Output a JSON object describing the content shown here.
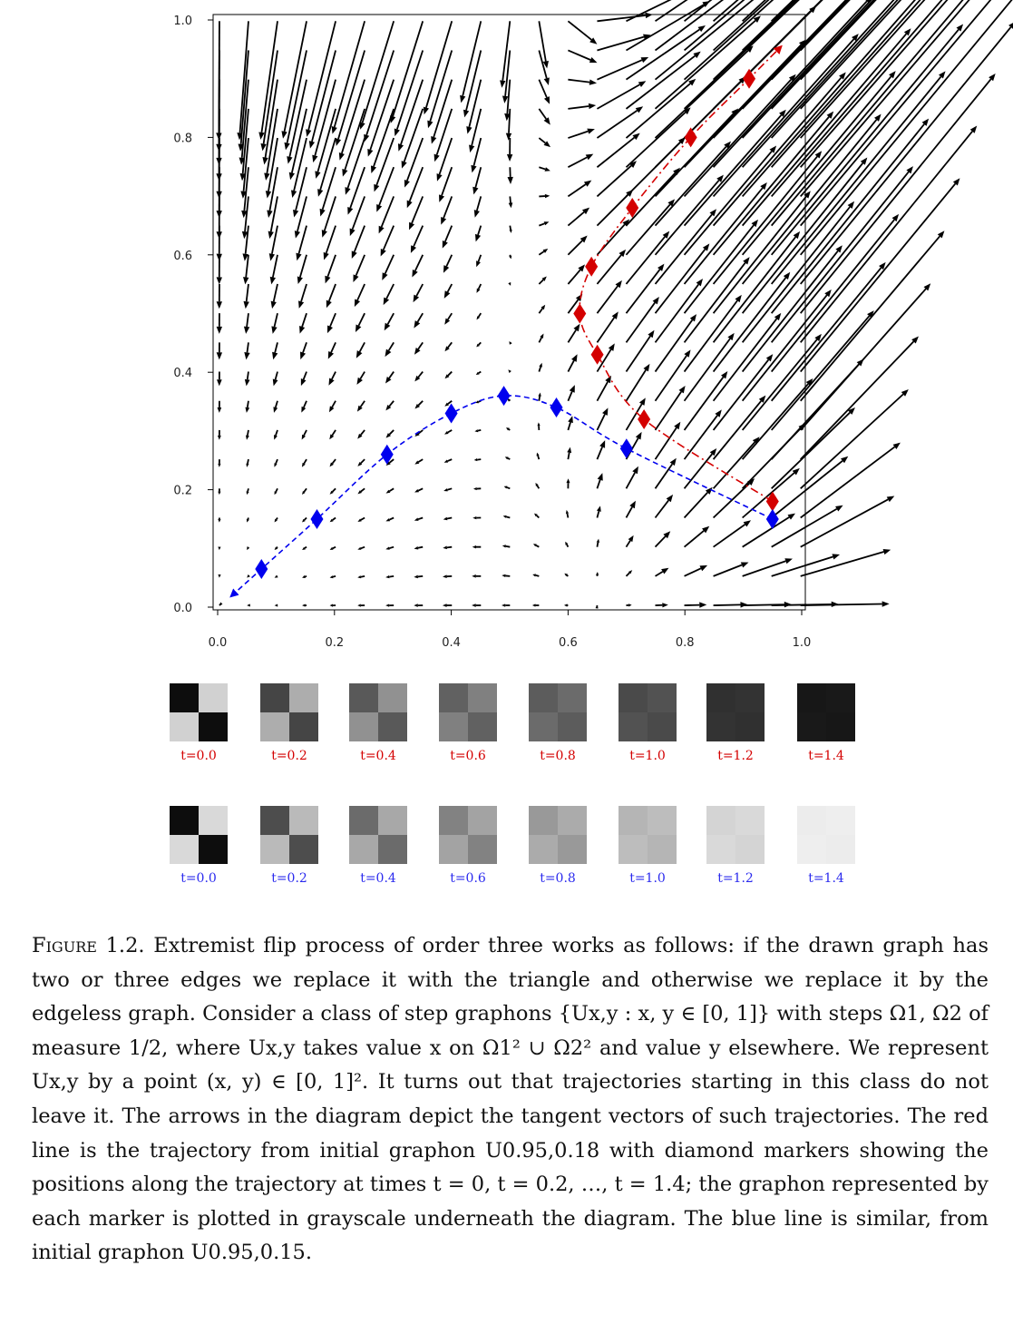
{
  "figure": {
    "label": "Figure 1.2.",
    "caption": "Extremist flip process of order three works as follows: if the drawn graph has two or three edges we replace it with the triangle and otherwise we replace it by the edgeless graph. Consider a class of step graphons {Ux,y : x, y ∈ [0, 1]} with steps Ω1, Ω2 of measure 1/2, where Ux,y takes value x on Ω1² ∪ Ω2² and value y elsewhere. We represent Ux,y by a point (x, y) ∈ [0, 1]². It turns out that trajectories starting in this class do not leave it. The arrows in the diagram depict the tangent vectors of such trajectories. The red line is the trajectory from initial graphon U0.95,0.18 with diamond markers showing the positions along the trajectory at times t = 0, t = 0.2, …, t = 1.4; the graphon represented by each marker is plotted in grayscale underneath the diagram. The blue line is similar, from initial graphon U0.95,0.15."
  },
  "chart_data": {
    "type": "scatter",
    "title": "",
    "xlabel": "",
    "ylabel": "",
    "xlim": [
      0,
      1
    ],
    "ylim": [
      0,
      1
    ],
    "x_ticks": [
      "0.0",
      "0.2",
      "0.4",
      "0.6",
      "0.8",
      "1.0"
    ],
    "y_ticks": [
      "0.0",
      "0.2",
      "0.4",
      "0.6",
      "0.8",
      "1.0"
    ],
    "vector_field": "quiver plot of tangent vectors on an evenly spaced grid",
    "series": [
      {
        "color": "#d40000",
        "linestyle": "dash-dot",
        "marker": "diamond",
        "points": [
          {
            "t": 0.0,
            "x": 0.95,
            "y": 0.18
          },
          {
            "t": 0.2,
            "x": 0.73,
            "y": 0.32
          },
          {
            "t": 0.4,
            "x": 0.65,
            "y": 0.43
          },
          {
            "t": 0.6,
            "x": 0.62,
            "y": 0.5
          },
          {
            "t": 0.8,
            "x": 0.64,
            "y": 0.58
          },
          {
            "t": 1.0,
            "x": 0.71,
            "y": 0.68
          },
          {
            "t": 1.2,
            "x": 0.81,
            "y": 0.8
          },
          {
            "t": 1.4,
            "x": 0.91,
            "y": 0.9
          }
        ]
      },
      {
        "color": "#0000ee",
        "linestyle": "dashed",
        "marker": "diamond",
        "points": [
          {
            "t": 0.0,
            "x": 0.95,
            "y": 0.15
          },
          {
            "t": 0.2,
            "x": 0.7,
            "y": 0.27
          },
          {
            "t": 0.4,
            "x": 0.58,
            "y": 0.34
          },
          {
            "t": 0.6,
            "x": 0.49,
            "y": 0.36
          },
          {
            "t": 0.8,
            "x": 0.4,
            "y": 0.33
          },
          {
            "t": 1.0,
            "x": 0.29,
            "y": 0.26
          },
          {
            "t": 1.2,
            "x": 0.17,
            "y": 0.15
          },
          {
            "t": 1.4,
            "x": 0.075,
            "y": 0.065
          }
        ]
      }
    ]
  },
  "strips": [
    {
      "color": "#d40000",
      "labels": [
        "t=0.0",
        "t=0.2",
        "t=0.4",
        "t=0.6",
        "t=0.8",
        "t=1.0",
        "t=1.2",
        "t=1.4"
      ]
    },
    {
      "color": "#2a2aee",
      "labels": [
        "t=0.0",
        "t=0.2",
        "t=0.4",
        "t=0.6",
        "t=0.8",
        "t=1.0",
        "t=1.2",
        "t=1.4"
      ]
    }
  ]
}
